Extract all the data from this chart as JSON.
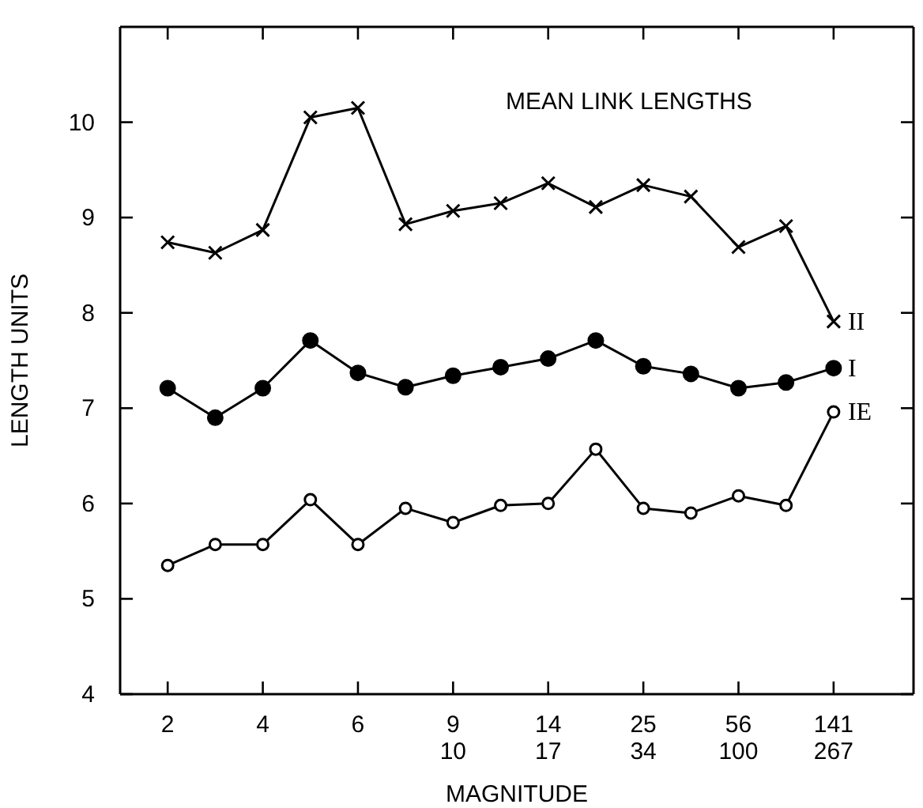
{
  "chart_data": {
    "type": "line",
    "title": "MEAN LINK LENGTHS",
    "xlabel": "MAGNITUDE",
    "ylabel": "LENGTH UNITS",
    "categories": [
      "2",
      null,
      "4",
      null,
      "6",
      null,
      "9\n10",
      null,
      "14\n17",
      null,
      "25\n34",
      null,
      "56\n100",
      null,
      "141\n267"
    ],
    "series": [
      {
        "name": "II",
        "color": "#000000",
        "marker": "cross",
        "values": [
          8.74,
          8.63,
          8.87,
          10.05,
          10.15,
          8.93,
          9.07,
          9.15,
          9.36,
          9.11,
          9.34,
          9.22,
          8.69,
          8.91,
          7.91
        ]
      },
      {
        "name": "I",
        "color": "#000000",
        "marker": "circle",
        "values": [
          7.21,
          6.9,
          7.21,
          7.71,
          7.37,
          7.22,
          7.34,
          7.43,
          7.52,
          7.71,
          7.44,
          7.36,
          7.21,
          7.27,
          7.42
        ]
      },
      {
        "name": "IE",
        "color": "#000000",
        "marker": "circle",
        "values": [
          5.35,
          5.57,
          5.57,
          6.04,
          5.57,
          5.95,
          5.8,
          5.98,
          6.0,
          6.57,
          5.95,
          5.9,
          6.08,
          5.98,
          6.96
        ]
      }
    ],
    "ylim": [
      4,
      11
    ],
    "yticks": [
      4,
      5,
      6,
      7,
      8,
      9,
      10
    ],
    "grid": false,
    "legend": "right",
    "line_style": "solid"
  }
}
